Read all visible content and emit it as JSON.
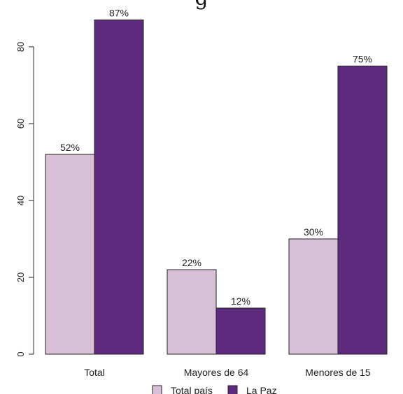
{
  "page": {
    "title": "g"
  },
  "chart_data": {
    "type": "bar",
    "title": "",
    "xlabel": "",
    "ylabel": "",
    "categories": [
      "Total",
      "Mayores de 64",
      "Menores de 15"
    ],
    "series": [
      {
        "name": "Total país",
        "values": [
          52,
          22,
          30
        ],
        "labels": [
          "52%",
          "22%",
          "30%"
        ],
        "color": "#d8bfd8"
      },
      {
        "name": "La Paz",
        "values": [
          87,
          12,
          75
        ],
        "labels": [
          "87%",
          "12%",
          "75%"
        ],
        "color": "#5e2a7e"
      }
    ],
    "ylim": [
      0,
      90
    ],
    "yticks": [
      0,
      20,
      40,
      60,
      80
    ],
    "yticks_labels": [
      "0",
      "20",
      "40",
      "60",
      "80"
    ],
    "grid": false,
    "legend": "bottom"
  }
}
